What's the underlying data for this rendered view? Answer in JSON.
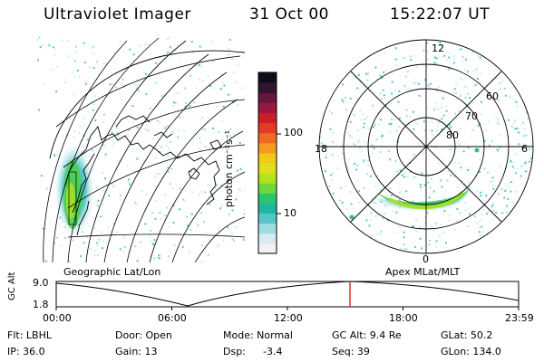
{
  "header": {
    "instrument": "Ultraviolet Imager",
    "date": "31 Oct 00",
    "time": "15:22:07 UT"
  },
  "colorbar": {
    "unit_label": "photon cm⁻²s⁻¹",
    "ticks": [
      "100",
      "10"
    ],
    "colors": [
      "#f2f2f2",
      "#d6ecef",
      "#9edde3",
      "#55c7c9",
      "#21b6a2",
      "#27c66f",
      "#6fd63c",
      "#b4e21d",
      "#dede1e",
      "#f2c81a",
      "#f59a1f",
      "#ef6a22",
      "#e33a24",
      "#c91f2a",
      "#99183f",
      "#66163f",
      "#301530",
      "#0d0d1e"
    ]
  },
  "geo_panel": {
    "caption": "Geographic Lat/Lon"
  },
  "polar_panel": {
    "caption": "Apex MLat/MLT",
    "mlt_labels": [
      "12",
      "18",
      "6",
      "0"
    ],
    "lat_labels": [
      "60",
      "70",
      "80"
    ]
  },
  "altitude_plot": {
    "ylabel": "GC Alt",
    "yticks": [
      "9.0",
      "1.8"
    ],
    "xticks": [
      "00:00",
      "06:00",
      "12:00",
      "18:00",
      "23:59"
    ],
    "marker_time": "15:22",
    "marker_color": "#e00000"
  },
  "info": {
    "filter": "Flt: LBHL",
    "ip": "IP: 36.0",
    "door": "Door: Open",
    "gain": "Gain: 13",
    "mode": "Mode: Normal",
    "dsp_label": "Dsp:",
    "dsp_value": "-3.4",
    "gc_alt": "GC Alt: 9.4 Re",
    "seq": "Seq: 39",
    "glat": "GLat: 50.2",
    "glon": "GLon: 134.0"
  }
}
